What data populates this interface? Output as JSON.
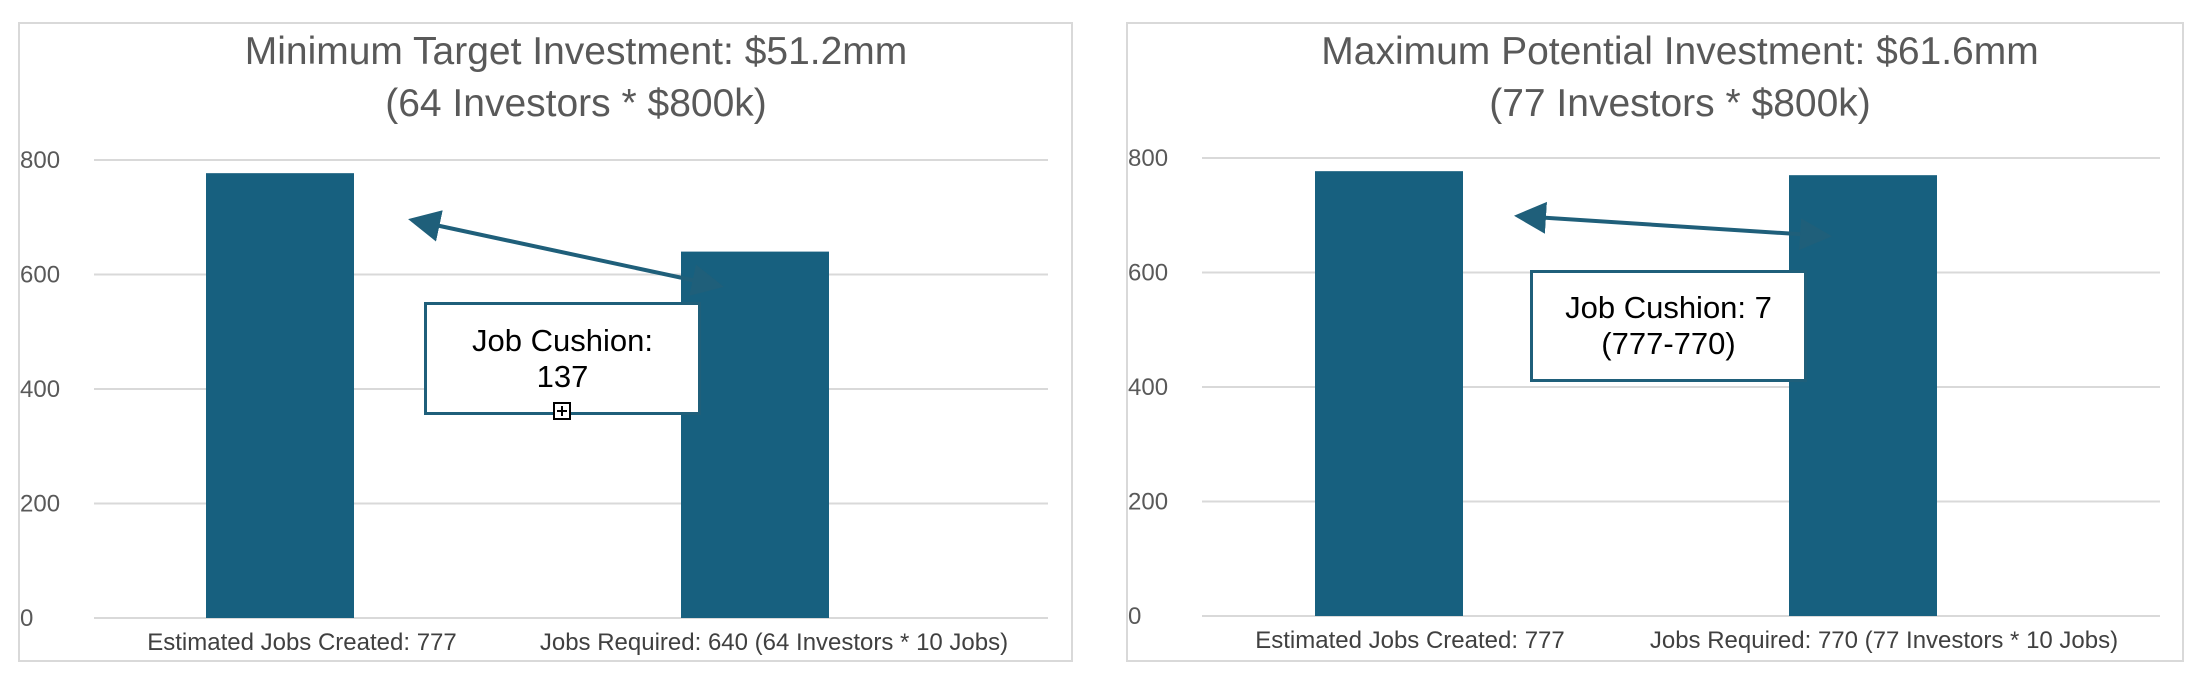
{
  "chart_data": [
    {
      "type": "bar",
      "title": [
        "Minimum Target Investment: $51.2mm",
        "(64 Investors * $800k)"
      ],
      "categories": [
        "Estimated Jobs Created: 777",
        "Jobs Required: 640 (64 Investors * 10 Jobs)"
      ],
      "values": [
        777,
        640
      ],
      "ylim": [
        0,
        800
      ],
      "yticks": [
        0,
        200,
        400,
        600,
        800
      ],
      "grid": true,
      "bar_color": "#17607f",
      "annotation": {
        "lines": [
          "Job Cushion:",
          "137"
        ]
      }
    },
    {
      "type": "bar",
      "title": [
        "Maximum Potential Investment: $61.6mm",
        "(77 Investors * $800k)"
      ],
      "categories": [
        "Estimated Jobs Created: 777",
        "Jobs Required: 770 (77 Investors * 10 Jobs)"
      ],
      "values": [
        777,
        770
      ],
      "ylim": [
        0,
        800
      ],
      "yticks": [
        0,
        200,
        400,
        600,
        800
      ],
      "grid": true,
      "bar_color": "#17607f",
      "annotation": {
        "lines": [
          "Job Cushion: 7",
          "(777-770)"
        ]
      }
    }
  ]
}
